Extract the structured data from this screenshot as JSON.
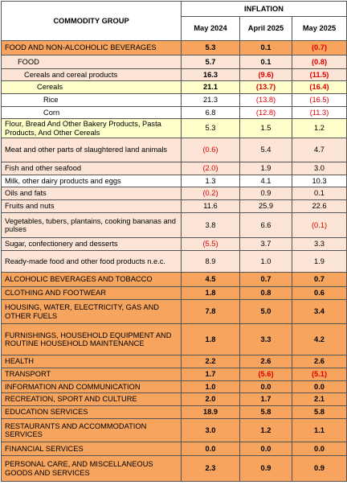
{
  "header": {
    "label": "COMMODITY GROUP",
    "group": "INFLATION",
    "columns": [
      "May 2024",
      "April 2025",
      "May 2025"
    ]
  },
  "rows": [
    {
      "label": "FOOD AND NON-ALCOHOLIC BEVERAGES",
      "values": [
        "5.3",
        "0.1",
        "(0.7)"
      ]
    },
    {
      "label": "FOOD",
      "values": [
        "5.7",
        "0.1",
        "(0.8)"
      ]
    },
    {
      "label": "Cereals and cereal products",
      "values": [
        "16.3",
        "(9.6)",
        "(11.5)"
      ]
    },
    {
      "label": "Cereals",
      "values": [
        "21.1",
        "(13.7)",
        "(16.4)"
      ]
    },
    {
      "label": "Rice",
      "values": [
        "21.3",
        "(13.8)",
        "(16.5)"
      ]
    },
    {
      "label": "Corn",
      "values": [
        "6.8",
        "(12.8)",
        "(11.3)"
      ]
    },
    {
      "label": "Flour, Bread And Other Bakery Products, Pasta Products, And Other Cereals",
      "values": [
        "5.3",
        "1.5",
        "1.2"
      ]
    },
    {
      "label": "Meat and other parts of slaughtered land animals",
      "values": [
        "(0.6)",
        "5.4",
        "4.7"
      ]
    },
    {
      "label": "Fish and other seafood",
      "values": [
        "(2.0)",
        "1.9",
        "3.0"
      ]
    },
    {
      "label": "Milk, other dairy products and eggs",
      "values": [
        "1.3",
        "4.1",
        "10.3"
      ]
    },
    {
      "label": "Oils and fats",
      "values": [
        "(0.2)",
        "0.9",
        "0.1"
      ]
    },
    {
      "label": "Fruits and nuts",
      "values": [
        "11.6",
        "25.9",
        "22.6"
      ]
    },
    {
      "label": "Vegetables, tubers, plantains, cooking bananas and pulses",
      "values": [
        "3.8",
        "6.6",
        "(0.1)"
      ]
    },
    {
      "label": "Sugar, confectionery and desserts",
      "values": [
        "(5.5)",
        "3.7",
        "3.3"
      ]
    },
    {
      "label": "Ready-made food and other food products n.e.c.",
      "values": [
        "8.9",
        "1.0",
        "1.9"
      ]
    },
    {
      "label": "ALCOHOLIC BEVERAGES AND TOBACCO",
      "values": [
        "4.5",
        "0.7",
        "0.7"
      ]
    },
    {
      "label": "CLOTHING AND FOOTWEAR",
      "values": [
        "1.8",
        "0.8",
        "0.6"
      ]
    },
    {
      "label": "HOUSING, WATER, ELECTRICITY, GAS AND OTHER FUELS",
      "values": [
        "7.8",
        "5.0",
        "3.4"
      ]
    },
    {
      "label": "FURNISHINGS, HOUSEHOLD EQUIPMENT AND ROUTINE HOUSEHOLD MAINTENANCE",
      "values": [
        "1.8",
        "3.3",
        "4.2"
      ]
    },
    {
      "label": "HEALTH",
      "values": [
        "2.2",
        "2.6",
        "2.6"
      ]
    },
    {
      "label": "TRANSPORT",
      "values": [
        "1.7",
        "(5.6)",
        "(5.1)"
      ]
    },
    {
      "label": "INFORMATION AND COMMUNICATION",
      "values": [
        "1.0",
        "0.0",
        "0.0"
      ]
    },
    {
      "label": "RECREATION, SPORT AND CULTURE",
      "values": [
        "2.0",
        "1.7",
        "2.1"
      ]
    },
    {
      "label": "EDUCATION SERVICES",
      "values": [
        "18.9",
        "5.8",
        "5.8"
      ]
    },
    {
      "label": "RESTAURANTS AND ACCOMMODATION SERVICES",
      "values": [
        "3.0",
        "1.2",
        "1.1"
      ]
    },
    {
      "label": "FINANCIAL SERVICES",
      "values": [
        "0.0",
        "0.0",
        "0.0"
      ]
    },
    {
      "label": "PERSONAL CARE, AND MISCELLANEOUS GOODS AND SERVICES",
      "values": [
        "2.3",
        "0.9",
        "0.9"
      ]
    }
  ]
}
